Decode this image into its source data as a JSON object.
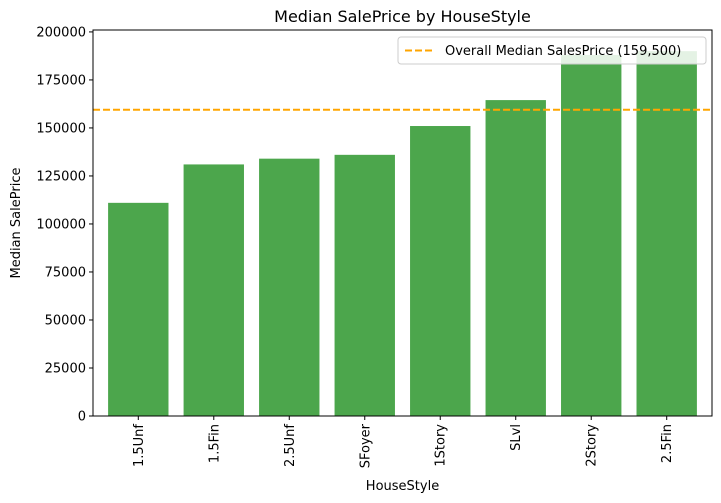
{
  "chart_data": {
    "type": "bar",
    "title": "Median SalePrice by HouseStyle",
    "xlabel": "HouseStyle",
    "ylabel": "Median SalePrice",
    "categories": [
      "1.5Unf",
      "1.5Fin",
      "2.5Unf",
      "SFoyer",
      "1Story",
      "SLvl",
      "2Story",
      "2.5Fin"
    ],
    "values": [
      111000,
      131000,
      134000,
      136000,
      151000,
      164500,
      188000,
      190000
    ],
    "ylim": [
      0,
      201000
    ],
    "yticks": [
      0,
      25000,
      50000,
      75000,
      100000,
      125000,
      150000,
      175000,
      200000
    ],
    "bar_color": "#4ca64c",
    "reference_line": {
      "value": 159500,
      "label": "Overall Median SalesPrice (159,500)",
      "color": "#ffa500",
      "style": "dashed"
    },
    "legend_position": "top-right",
    "grid": false
  }
}
